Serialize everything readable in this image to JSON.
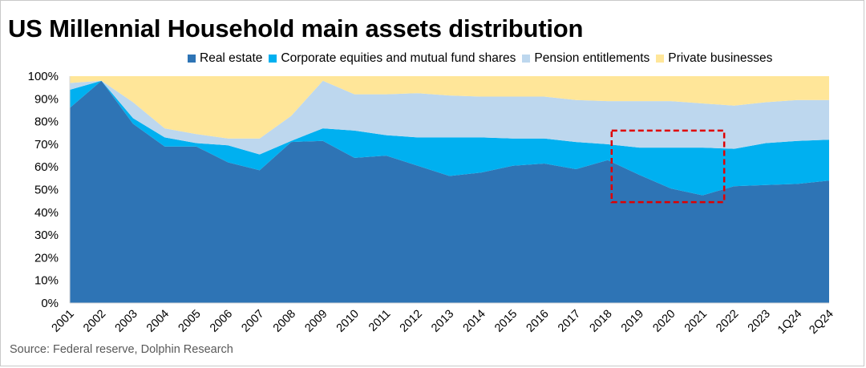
{
  "title": "US Millennial Household main assets distribution",
  "source": "Source:  Federal reserve,   Dolphin Research",
  "colors": {
    "real_estate": "#2e74b5",
    "equities": "#00b0f0",
    "pension": "#bdd7ee",
    "private": "#ffe699",
    "highlight": "#e00000"
  },
  "chart_data": {
    "type": "area",
    "stacked": true,
    "normalized": true,
    "title": "US Millennial Household main assets distribution",
    "categories": [
      "2001",
      "2002",
      "2003",
      "2004",
      "2005",
      "2006",
      "2007",
      "2008",
      "2009",
      "2010",
      "2011",
      "2012",
      "2013",
      "2014",
      "2015",
      "2016",
      "2017",
      "2018",
      "2019",
      "2020",
      "2021",
      "2022",
      "2023",
      "1Q24",
      "2Q24"
    ],
    "ylim": [
      0,
      100
    ],
    "yticks": [
      "0%",
      "10%",
      "20%",
      "30%",
      "40%",
      "50%",
      "60%",
      "70%",
      "80%",
      "90%",
      "100%"
    ],
    "legend_position": "top",
    "series": [
      {
        "name": "Real estate",
        "values": [
          86,
          98,
          79,
          69,
          69,
          62,
          58.5,
          71,
          71.5,
          64,
          65,
          60.5,
          56,
          57.5,
          60.5,
          61.5,
          59,
          63,
          56.5,
          50.5,
          47.5,
          51.5,
          52,
          52.5,
          54
        ]
      },
      {
        "name": "Corporate equities and mutual fund shares",
        "values": [
          8,
          0,
          2.5,
          4,
          1.5,
          7.5,
          7,
          0.5,
          5.5,
          12,
          9,
          12.5,
          17,
          15.5,
          12,
          11,
          12,
          7,
          12,
          18,
          21,
          16.5,
          18.5,
          19,
          18
        ]
      },
      {
        "name": "Pension entitlements",
        "values": [
          3,
          0,
          7,
          4,
          4,
          3,
          7,
          11,
          21,
          16,
          18,
          19.5,
          18.5,
          18,
          18.5,
          18.5,
          18.5,
          19,
          20.5,
          20.5,
          19.5,
          19,
          18,
          18,
          17.5
        ]
      },
      {
        "name": "Private businesses",
        "values": [
          3,
          2,
          11.5,
          23,
          25.5,
          27.5,
          27.5,
          17.5,
          2,
          8,
          8,
          7.5,
          8.5,
          9,
          9,
          9,
          10.5,
          11,
          11,
          11,
          12,
          13,
          11.5,
          10.5,
          10.5
        ]
      }
    ],
    "annotation": {
      "type": "dashed-rectangle",
      "x_from": "2018",
      "x_to": "2021",
      "y_from": 44.5,
      "y_to": 76
    }
  }
}
